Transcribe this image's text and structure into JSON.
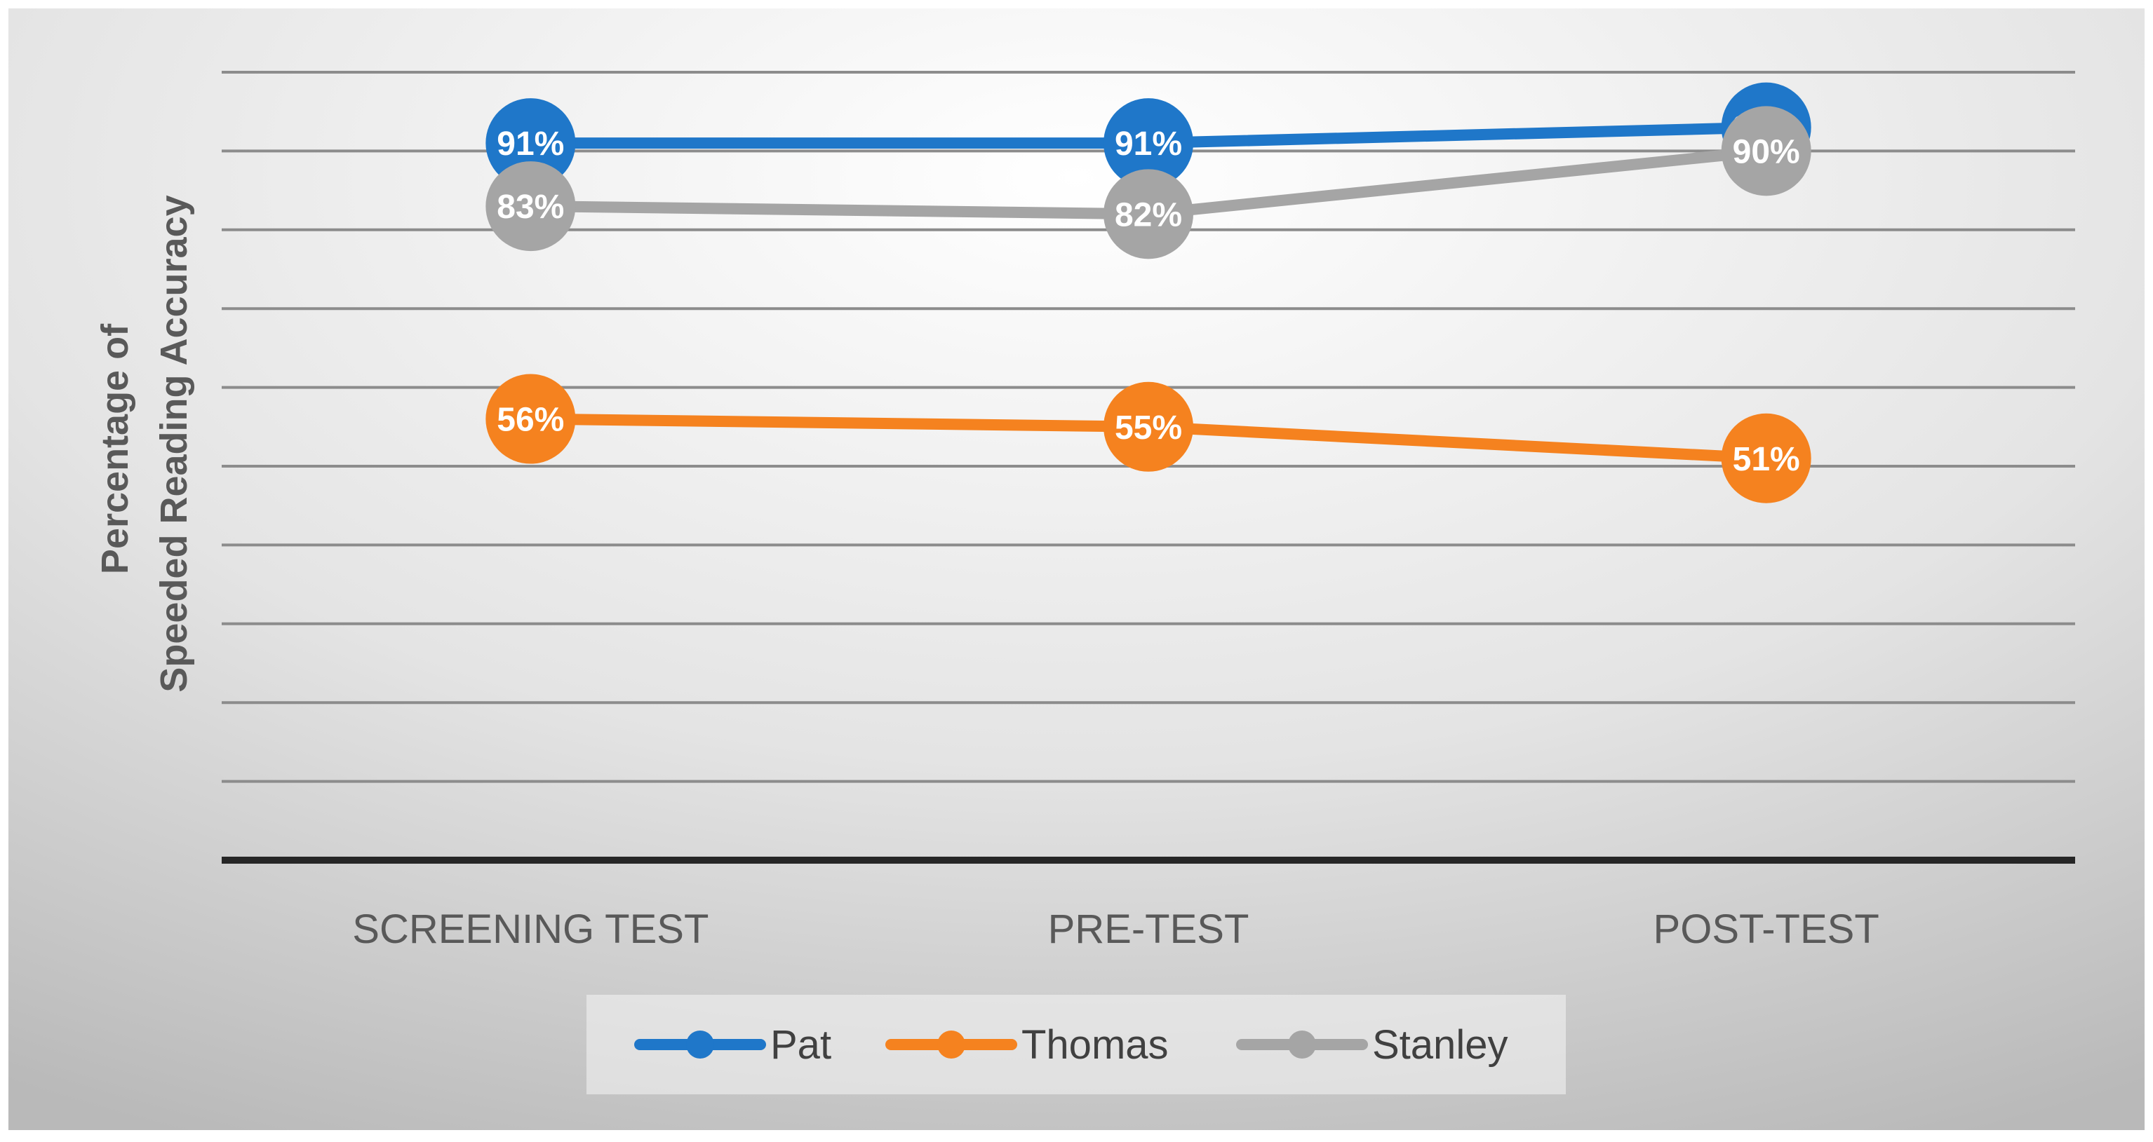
{
  "chart_data": {
    "type": "line",
    "title": "",
    "xlabel": "",
    "ylabel": "Percentage of\nSpeeded Reading Accuracy",
    "ylabel_lines": [
      "Percentage of",
      "Speeded Reading Accuracy"
    ],
    "categories": [
      "SCREENING TEST",
      "PRE-TEST",
      "POST-TEST"
    ],
    "ylim": [
      0,
      100
    ],
    "y_tick_step": 10,
    "y_tick_labels_shown": false,
    "grid": true,
    "legend_position": "bottom",
    "series": [
      {
        "name": "Pat",
        "color": "#1f77c9",
        "values": [
          91,
          91,
          93
        ],
        "labels": [
          "91%",
          "91%",
          "93%"
        ]
      },
      {
        "name": "Thomas",
        "color": "#f5821f",
        "values": [
          56,
          55,
          51
        ],
        "labels": [
          "56%",
          "55%",
          "51%"
        ]
      },
      {
        "name": "Stanley",
        "color": "#a5a5a5",
        "values": [
          83,
          82,
          90
        ],
        "labels": [
          "83%",
          "82%",
          "90%"
        ]
      }
    ]
  }
}
